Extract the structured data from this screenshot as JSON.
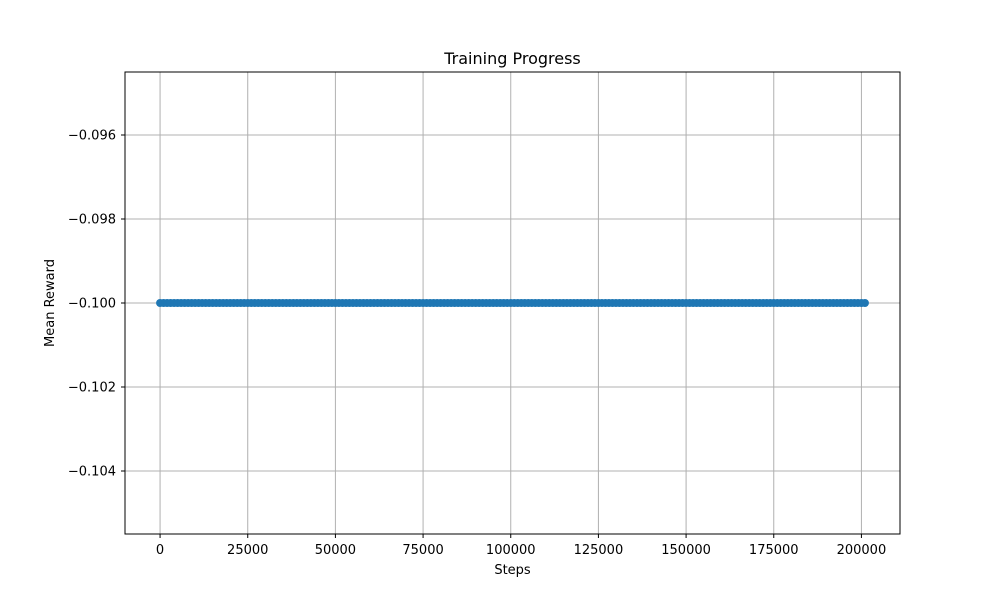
{
  "chart_data": {
    "type": "line",
    "title": "Training Progress",
    "xlabel": "Steps",
    "ylabel": "Mean Reward",
    "xlim": [
      -10000,
      211000
    ],
    "ylim": [
      -0.1055,
      -0.0945
    ],
    "x_ticks": [
      0,
      25000,
      50000,
      75000,
      100000,
      125000,
      150000,
      175000,
      200000
    ],
    "x_tick_labels": [
      "0",
      "25000",
      "50000",
      "75000",
      "100000",
      "125000",
      "150000",
      "175000",
      "200000"
    ],
    "y_ticks": [
      -0.104,
      -0.102,
      -0.1,
      -0.098,
      -0.096
    ],
    "y_tick_labels": [
      "−0.104",
      "−0.102",
      "−0.100",
      "−0.098",
      "−0.096"
    ],
    "grid": true,
    "marker": "circle",
    "series_color": "#1f77b4",
    "series": [
      {
        "x_start": 0,
        "x_end": 201000,
        "x_step": 1000,
        "y_constant": -0.1
      }
    ]
  }
}
